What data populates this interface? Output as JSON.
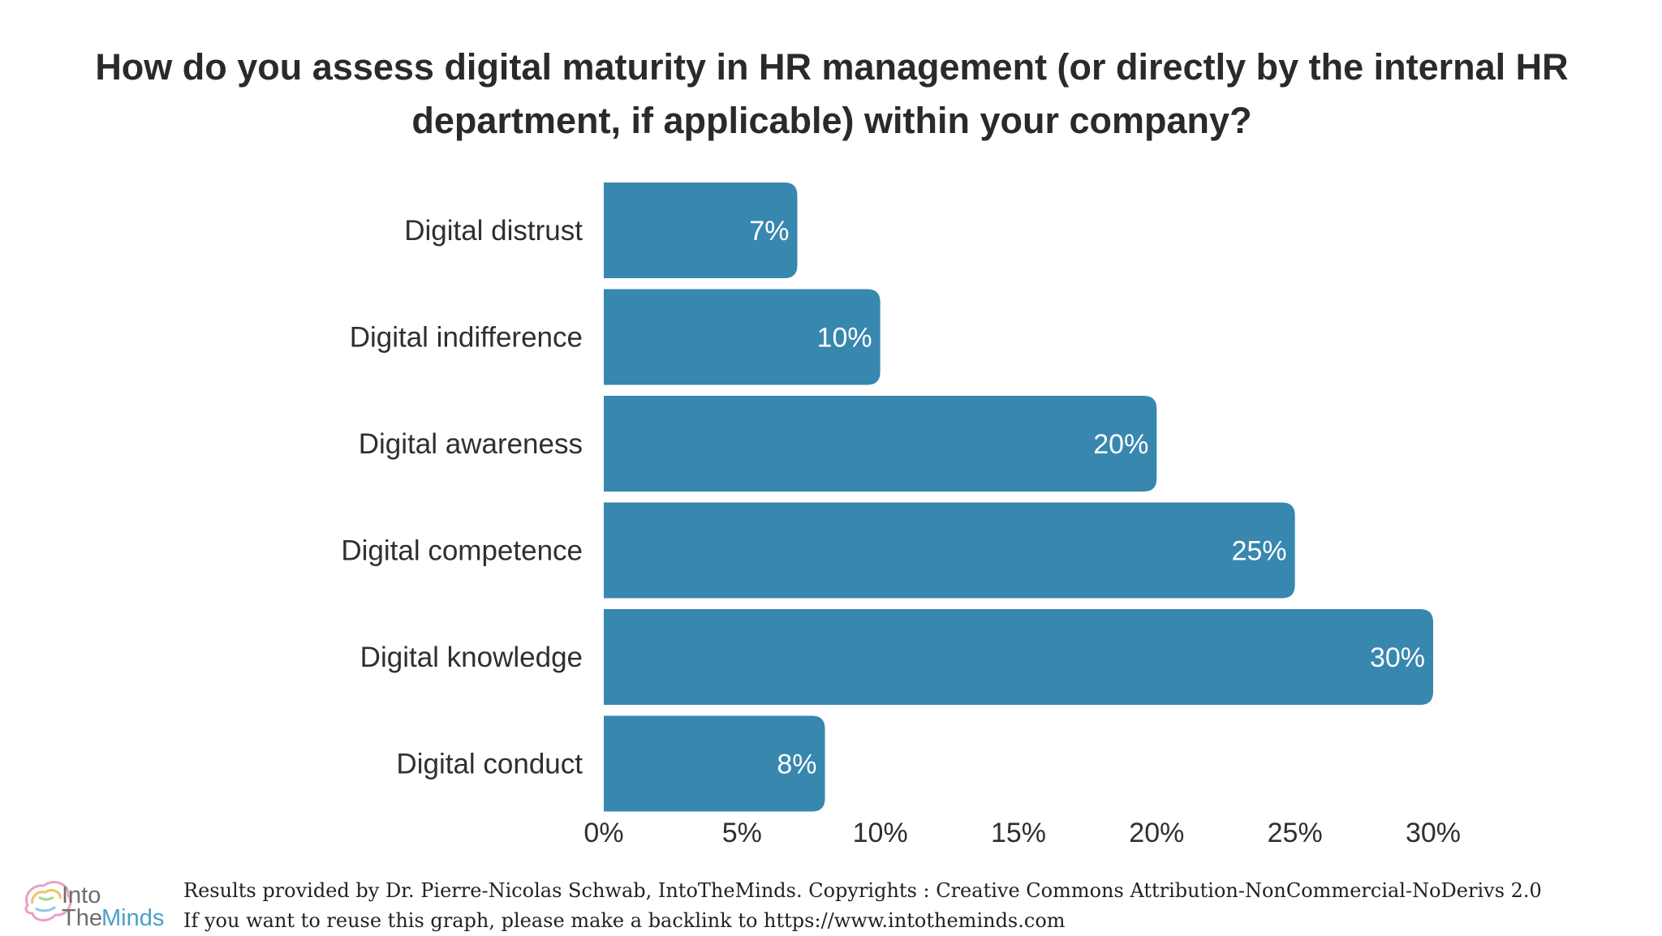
{
  "chart_data": {
    "type": "bar",
    "orientation": "horizontal",
    "title": "How do you assess digital maturity in HR management (or directly by the internal HR department, if applicable) within your company?",
    "categories": [
      "Digital distrust",
      "Digital indifference",
      "Digital awareness",
      "Digital competence",
      "Digital knowledge",
      "Digital conduct"
    ],
    "values": [
      7,
      10,
      20,
      25,
      30,
      8
    ],
    "value_labels": [
      "7%",
      "10%",
      "20%",
      "25%",
      "30%",
      "8%"
    ],
    "xlim": [
      0,
      30
    ],
    "x_ticks": [
      "0%",
      "5%",
      "10%",
      "15%",
      "20%",
      "25%",
      "30%"
    ],
    "x_tick_values": [
      0,
      5,
      10,
      15,
      20,
      25,
      30
    ],
    "xlabel": "",
    "ylabel": "",
    "grid": false,
    "legend": "none",
    "bar_color": "#3787ae",
    "label_color": "#ffffff"
  },
  "footer": {
    "line1": "Results provided by Dr. Pierre-Nicolas Schwab, IntoTheMinds. Copyrights : Creative Commons Attribution-NonCommercial-NoDerivs 2.0",
    "line2": "If you want to reuse this graph, please make a backlink to https://www.intotheminds.com"
  },
  "logo": {
    "word1": "Into",
    "word2": "The",
    "word3": "Minds"
  }
}
